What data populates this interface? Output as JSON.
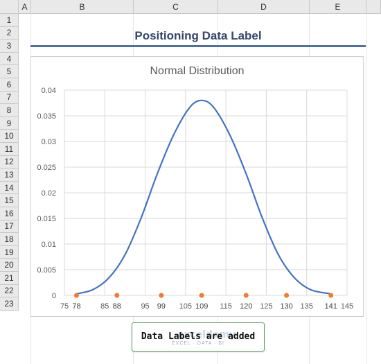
{
  "spreadsheet": {
    "columns": [
      "A",
      "B",
      "C",
      "D",
      "E"
    ],
    "rows": [
      "1",
      "2",
      "3",
      "4",
      "5",
      "6",
      "7",
      "8",
      "9",
      "10",
      "11",
      "12",
      "13",
      "14",
      "15",
      "16",
      "17",
      "18",
      "19",
      "20",
      "21",
      "22",
      "23"
    ]
  },
  "sheet_title": "Positioning Data Label",
  "chart_data": {
    "type": "scatter",
    "title": "Normal Distribution",
    "xlim": [
      75,
      145
    ],
    "ylim": [
      0,
      0.04
    ],
    "x_ticks": [
      75,
      85,
      95,
      105,
      115,
      125,
      135,
      145
    ],
    "y_ticks": [
      0,
      0.005,
      0.01,
      0.015,
      0.02,
      0.025,
      0.03,
      0.035,
      0.04
    ],
    "y_tick_labels": [
      "0",
      "0.005",
      "0.01",
      "0.015",
      "0.02",
      "0.025",
      "0.03",
      "0.035",
      "0.04"
    ],
    "series": [
      {
        "kind": "line",
        "color": "#4472c4",
        "points": [
          [
            78,
            0.0003
          ],
          [
            82,
            0.0011
          ],
          [
            86,
            0.0034
          ],
          [
            90,
            0.0079
          ],
          [
            94,
            0.0151
          ],
          [
            98,
            0.0237
          ],
          [
            102,
            0.0312
          ],
          [
            106,
            0.0366
          ],
          [
            109,
            0.038
          ],
          [
            112,
            0.0366
          ],
          [
            116,
            0.0312
          ],
          [
            120,
            0.0237
          ],
          [
            124,
            0.0151
          ],
          [
            128,
            0.0079
          ],
          [
            132,
            0.0034
          ],
          [
            136,
            0.0011
          ],
          [
            141,
            0.0003
          ]
        ]
      },
      {
        "kind": "markers",
        "color": "#ed7d31",
        "x": [
          78,
          88,
          99,
          109,
          120,
          130,
          141
        ],
        "y": [
          0,
          0,
          0,
          0,
          0,
          0,
          0
        ],
        "labels": [
          "78",
          "88",
          "99",
          "109",
          "120",
          "130",
          "141"
        ]
      }
    ],
    "grid": true
  },
  "button": {
    "label": "Data Labels are added",
    "watermark": "EXCEL · DATA · BI"
  }
}
